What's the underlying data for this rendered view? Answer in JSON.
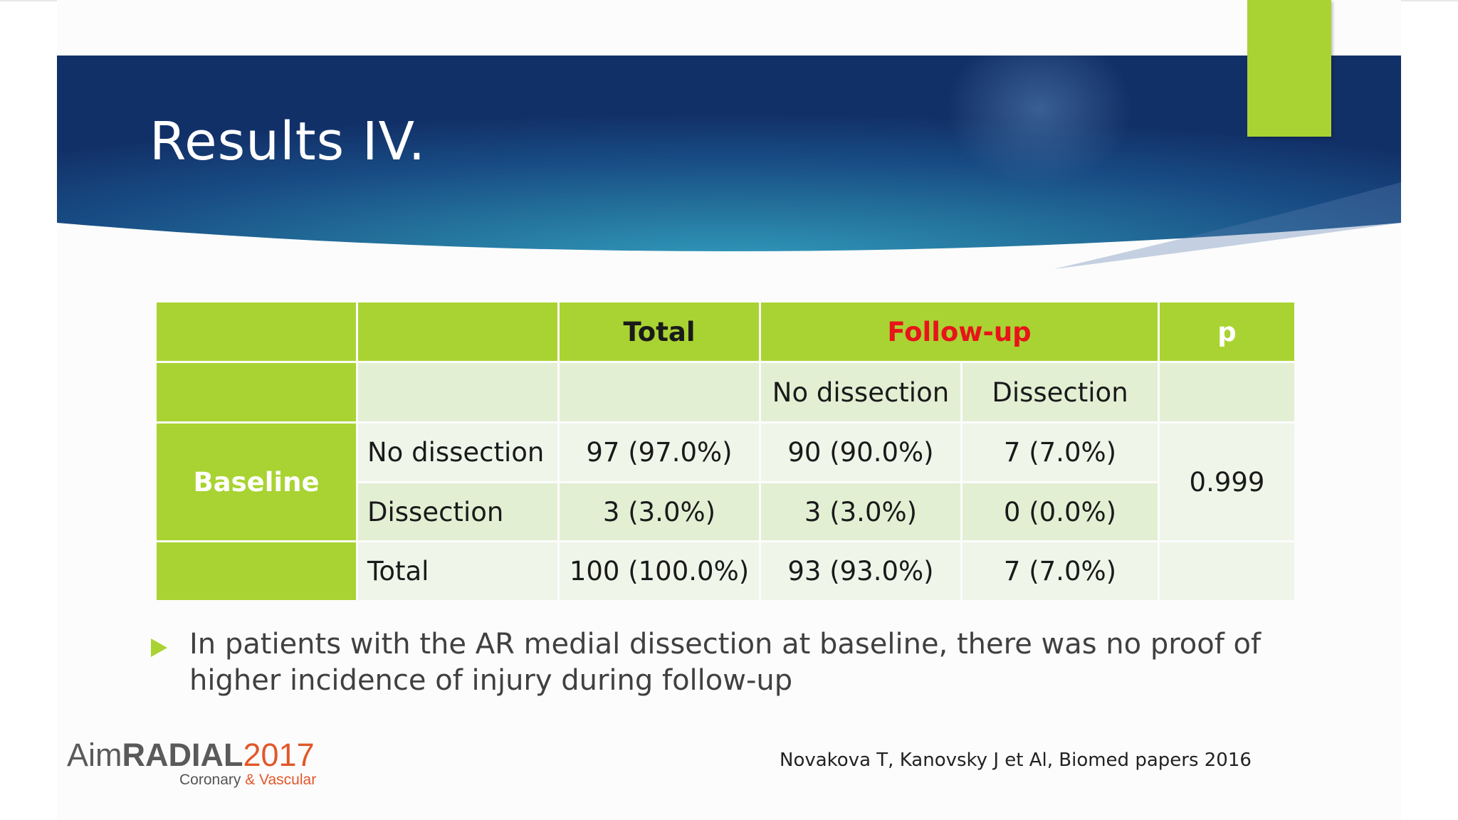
{
  "slide": {
    "title": "Results IV.",
    "colors": {
      "accent_green": "#a9d332",
      "banner_blue_dark": "#13336e",
      "banner_teal": "#2f8fb0",
      "followup_red": "#e8141a",
      "logo_orange": "#e2572a"
    }
  },
  "table": {
    "header": {
      "total": "Total",
      "followup": "Follow-up",
      "p": "p"
    },
    "subheader": {
      "no_dissection": "No dissection",
      "dissection": "Dissection"
    },
    "row_group_label": "Baseline",
    "rows": [
      {
        "label": "No dissection",
        "total": "97 (97.0%)",
        "fu_no": "90 (90.0%)",
        "fu_yes": "7 (7.0%)"
      },
      {
        "label": "Dissection",
        "total": "3 (3.0%)",
        "fu_no": "3 (3.0%)",
        "fu_yes": "0 (0.0%)"
      },
      {
        "label": "Total",
        "total": "100 (100.0%)",
        "fu_no": "93 (93.0%)",
        "fu_yes": "7 (7.0%)"
      }
    ],
    "p_value": "0.999"
  },
  "bullet": {
    "icon": "triangle-bullet-icon",
    "text": "In patients with the AR medial dissection at baseline, there was no proof of higher incidence of injury during follow-up"
  },
  "logo": {
    "aim": "Aim",
    "radial": "RADIAL",
    "year": "2017",
    "sub_left": "Coronary ",
    "sub_amp": "& Vascular"
  },
  "citation": "Novakova T, Kanovsky J et Al, Biomed papers 2016"
}
